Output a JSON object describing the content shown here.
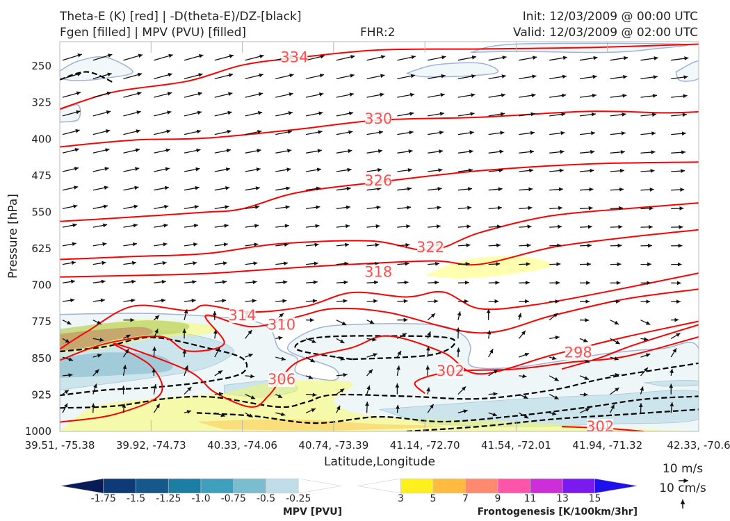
{
  "header": {
    "left_line1": "Theta-E (K) [red] | -D(theta-E)/DZ-[black]",
    "left_line2": "Fgen [filled] | MPV (PVU) [filled]",
    "center": "FHR:2",
    "right_line1": "Init: 12/03/2009 @ 00:00 UTC",
    "right_line2": "Valid: 12/03/2009 @ 02:00 UTC"
  },
  "chart_data": {
    "type": "cross-section",
    "xlabel": "Latitude,Longitude",
    "ylabel": "Pressure [hPa]",
    "x_ticks": [
      "39.51, -75.38",
      "39.92, -74.73",
      "40.33, -74.06",
      "40.74, -73.39",
      "41.14, -72.70",
      "41.54, -72.01",
      "41.94, -71.32",
      "42.33, -70.6"
    ],
    "y_ticks": [
      250,
      325,
      400,
      475,
      550,
      625,
      700,
      775,
      850,
      925,
      1000
    ],
    "ylim": [
      1000,
      200
    ],
    "theta_e_contour_labels": [
      {
        "value": "334",
        "at": [
          2.57,
          232
        ]
      },
      {
        "value": "330",
        "at": [
          3.49,
          358
        ]
      },
      {
        "value": "326",
        "at": [
          3.49,
          485
        ]
      },
      {
        "value": "322",
        "at": [
          4.06,
          622
        ]
      },
      {
        "value": "318",
        "at": [
          3.49,
          673
        ]
      },
      {
        "value": "314",
        "at": [
          2.0,
          762
        ]
      },
      {
        "value": "310",
        "at": [
          2.43,
          781
        ]
      },
      {
        "value": "306",
        "at": [
          2.43,
          893
        ]
      },
      {
        "value": "302",
        "at": [
          4.28,
          876
        ]
      },
      {
        "value": "298",
        "at": [
          5.68,
          838
        ]
      },
      {
        "value": "302",
        "at": [
          5.92,
          990
        ]
      }
    ],
    "theta_e_contours": [
      {
        "level": 334,
        "points": [
          [
            0,
            338
          ],
          [
            0.6,
            303
          ],
          [
            1.4,
            281
          ],
          [
            2,
            248
          ],
          [
            2.6,
            233
          ],
          [
            3.5,
            217
          ],
          [
            4.6,
            215
          ],
          [
            5.8,
            212
          ],
          [
            7,
            205
          ]
        ]
      },
      {
        "level": 330,
        "points": [
          [
            0,
            416
          ],
          [
            0.8,
            402
          ],
          [
            1.6,
            398
          ],
          [
            2.6,
            380
          ],
          [
            3.5,
            361
          ],
          [
            4.6,
            355
          ],
          [
            5.8,
            343
          ],
          [
            6.6,
            346
          ],
          [
            7,
            344
          ]
        ]
      },
      {
        "level": 326,
        "points": [
          [
            0,
            569
          ],
          [
            0.8,
            560
          ],
          [
            1.6,
            550
          ],
          [
            2,
            543
          ],
          [
            2.6,
            510
          ],
          [
            3.5,
            488
          ],
          [
            4.6,
            465
          ],
          [
            5.8,
            451
          ],
          [
            7,
            447
          ]
        ]
      },
      {
        "level": 322,
        "points": [
          [
            0,
            647
          ],
          [
            0.8,
            641
          ],
          [
            1.6,
            635
          ],
          [
            2.4,
            615
          ],
          [
            3.4,
            609
          ],
          [
            4.06,
            628
          ],
          [
            4.6,
            592
          ],
          [
            5.4,
            557
          ],
          [
            6.4,
            540
          ],
          [
            7,
            531
          ]
        ]
      },
      {
        "level": 318,
        "points": [
          [
            0,
            683
          ],
          [
            0.8,
            680
          ],
          [
            1.6,
            676
          ],
          [
            2.4,
            666
          ],
          [
            3.2,
            657
          ],
          [
            4.1,
            650
          ],
          [
            4.6,
            657
          ],
          [
            5.4,
            622
          ],
          [
            6.2,
            602
          ],
          [
            7,
            586
          ]
        ]
      },
      {
        "level": 314,
        "points": [
          [
            0,
            831
          ],
          [
            0.3,
            795
          ],
          [
            0.8,
            743
          ],
          [
            1.4,
            752
          ],
          [
            1.6,
            741
          ],
          [
            2.1,
            755
          ],
          [
            2.7,
            743
          ],
          [
            3.2,
            715
          ],
          [
            3.8,
            724
          ],
          [
            4.2,
            714
          ],
          [
            4.6,
            748
          ],
          [
            5.2,
            740
          ],
          [
            6,
            713
          ],
          [
            7,
            675
          ]
        ]
      },
      {
        "level": 310,
        "points": [
          [
            0,
            854
          ],
          [
            0.5,
            820
          ],
          [
            1.1,
            805
          ],
          [
            1.4,
            835
          ],
          [
            1.8,
            820
          ],
          [
            1.6,
            762
          ],
          [
            2.1,
            785
          ],
          [
            2.6,
            765
          ],
          [
            3,
            748
          ],
          [
            3.6,
            756
          ],
          [
            4.6,
            798
          ],
          [
            5.4,
            762
          ],
          [
            6.2,
            728
          ],
          [
            7,
            708
          ]
        ]
      },
      {
        "level": 306,
        "points": [
          [
            0,
            981
          ],
          [
            0.6,
            965
          ],
          [
            1.1,
            924
          ],
          [
            1,
            866
          ],
          [
            0.6,
            820
          ],
          [
            1.4,
            875
          ],
          [
            1.7,
            920
          ],
          [
            2.1,
            950
          ],
          [
            2.3,
            924
          ],
          [
            2.6,
            858
          ],
          [
            3.2,
            828
          ],
          [
            3.6,
            804
          ],
          [
            4.2,
            838
          ],
          [
            4.6,
            882
          ],
          [
            5.4,
            843
          ],
          [
            6.2,
            806
          ],
          [
            7,
            774
          ]
        ]
      },
      {
        "level": 302,
        "points": [
          [
            4,
            922
          ],
          [
            3.9,
            898
          ],
          [
            4.3,
            877
          ],
          [
            5,
            872
          ],
          [
            5.6,
            858
          ],
          [
            6.2,
            846
          ],
          [
            7,
            806
          ]
        ]
      },
      {
        "level": 298,
        "points": [
          [
            5.5,
            872
          ],
          [
            5.9,
            850
          ],
          [
            6.3,
            822
          ],
          [
            7,
            781
          ]
        ]
      },
      {
        "level": 302,
        "points": [
          [
            5.5,
            990
          ],
          [
            6,
            994
          ],
          [
            6.4,
            1000
          ]
        ]
      }
    ],
    "dthetae_dz_contours": [
      {
        "points": [
          [
            0,
            278
          ],
          [
            0.3,
            262
          ],
          [
            0.6,
            285
          ]
        ]
      },
      {
        "points": [
          [
            0,
            836
          ],
          [
            0.5,
            826
          ],
          [
            1,
            807
          ],
          [
            1.6,
            828
          ],
          [
            2,
            850
          ],
          [
            2,
            880
          ],
          [
            1.6,
            898
          ],
          [
            1,
            910
          ],
          [
            0.5,
            915
          ],
          [
            0,
            926
          ]
        ]
      },
      {
        "points": [
          [
            0,
            952
          ],
          [
            0.6,
            948
          ],
          [
            1.2,
            932
          ],
          [
            1.7,
            930
          ],
          [
            2.4,
            950
          ],
          [
            2.7,
            940
          ],
          [
            3,
            925
          ],
          [
            3.8,
            928
          ],
          [
            4.6,
            933
          ],
          [
            5.4,
            915
          ],
          [
            6,
            890
          ],
          [
            7,
            860
          ]
        ]
      },
      {
        "points": [
          [
            1.5,
            962
          ],
          [
            2.1,
            968
          ],
          [
            2.8,
            983
          ],
          [
            3.5,
            970
          ],
          [
            4.2,
            980
          ],
          [
            5,
            968
          ],
          [
            5.8,
            950
          ],
          [
            6.4,
            934
          ],
          [
            7,
            928
          ]
        ]
      },
      {
        "points": [
          [
            3.2,
            852
          ],
          [
            2.6,
            832
          ],
          [
            2.8,
            808
          ],
          [
            3.6,
            804
          ],
          [
            4.3,
            810
          ],
          [
            4.1,
            842
          ],
          [
            3.2,
            852
          ]
        ]
      },
      {
        "points": [
          [
            3.8,
            1000
          ],
          [
            4.6,
            990
          ],
          [
            5.4,
            975
          ],
          [
            6.2,
            965
          ],
          [
            7,
            955
          ]
        ]
      }
    ],
    "mpv_regions": [
      {
        "points": [
          [
            0,
            260
          ],
          [
            0.2,
            240
          ],
          [
            0.5,
            232
          ],
          [
            0.8,
            262
          ],
          [
            0.5,
            275
          ],
          [
            0.2,
            280
          ],
          [
            0,
            276
          ]
        ]
      },
      {
        "points": [
          [
            3.8,
            265
          ],
          [
            4.1,
            248
          ],
          [
            4.6,
            244
          ],
          [
            4.8,
            262
          ],
          [
            4.5,
            270
          ],
          [
            4,
            272
          ],
          [
            3.8,
            265
          ]
        ]
      },
      {
        "points": [
          [
            4.5,
            222
          ],
          [
            5,
            220
          ],
          [
            6,
            222
          ],
          [
            6.5,
            215
          ],
          [
            6.8,
            205
          ],
          [
            5,
            205
          ],
          [
            4.5,
            222
          ]
        ]
      },
      {
        "points": [
          [
            0,
            340
          ],
          [
            0.2,
            330
          ],
          [
            0.2,
            360
          ],
          [
            0,
            365
          ]
        ]
      },
      {
        "points": [
          [
            6.75,
            262
          ],
          [
            7,
            240
          ],
          [
            7,
            275
          ],
          [
            6.8,
            280
          ],
          [
            6.75,
            262
          ]
        ]
      },
      {
        "points": [
          [
            0,
            760
          ],
          [
            1,
            758
          ],
          [
            2,
            770
          ],
          [
            2.3,
            790
          ],
          [
            2.4,
            830
          ],
          [
            2.6,
            850
          ],
          [
            2.6,
            880
          ],
          [
            3,
            895
          ],
          [
            3,
            870
          ],
          [
            2.5,
            832
          ],
          [
            2.8,
            790
          ],
          [
            3.3,
            780
          ],
          [
            4.1,
            781
          ],
          [
            4.4,
            800
          ],
          [
            4.5,
            826
          ],
          [
            4.5,
            865
          ],
          [
            4.9,
            870
          ],
          [
            5.4,
            858
          ],
          [
            6,
            840
          ],
          [
            6.6,
            830
          ],
          [
            7,
            830
          ],
          [
            7,
            1000
          ],
          [
            0,
            1000
          ]
        ]
      }
    ],
    "fgen_regions": [
      {
        "points": [
          [
            4,
            680
          ],
          [
            4.4,
            650
          ],
          [
            5,
            640
          ],
          [
            5.4,
            658
          ],
          [
            5,
            676
          ],
          [
            4.4,
            686
          ],
          [
            4,
            680
          ]
        ]
      },
      {
        "points": [
          [
            0,
            1000
          ],
          [
            0.4,
            948
          ],
          [
            1.2,
            930
          ],
          [
            1.8,
            920
          ],
          [
            2.4,
            898
          ],
          [
            3.2,
            900
          ],
          [
            3,
            940
          ],
          [
            3.5,
            970
          ],
          [
            5,
            980
          ],
          [
            6,
            992
          ],
          [
            7,
            1000
          ]
        ]
      },
      {
        "points": [
          [
            0,
            800
          ],
          [
            0.4,
            785
          ],
          [
            0.8,
            770
          ],
          [
            1.3,
            775
          ],
          [
            1.7,
            785
          ],
          [
            1.6,
            800
          ],
          [
            1,
            810
          ],
          [
            0.5,
            830
          ],
          [
            0,
            840
          ]
        ]
      }
    ],
    "wind_vectors_note": "arrow field",
    "mpv_colorbar": {
      "label": "MPV [PVU]",
      "ticks": [
        "-1.75",
        "-1.5",
        "-1.25",
        "-1.0",
        "-0.75",
        "-0.5",
        "-0.25"
      ],
      "colors": [
        "#081d58",
        "#0e3a78",
        "#15588c",
        "#1d7ea3",
        "#3f9fbc",
        "#7cbccf",
        "#bfdde6",
        "#ffffff"
      ]
    },
    "fgen_colorbar": {
      "label": "Frontogenesis [K/100km/3hr]",
      "ticks": [
        "3",
        "5",
        "7",
        "9",
        "11",
        "13",
        "15"
      ],
      "colors": [
        "#ffffff",
        "#fff01e",
        "#ffbc40",
        "#ff8a70",
        "#ff55a8",
        "#cc2ed8",
        "#7b1aee",
        "#2010ee"
      ]
    },
    "reference_vectors": {
      "horizontal": "10 m/s",
      "vertical": "10 cm/s"
    }
  },
  "colors": {
    "theta_e": "#ff0000",
    "dthetae_dz": "#000000",
    "label": "#ff4d4d"
  }
}
